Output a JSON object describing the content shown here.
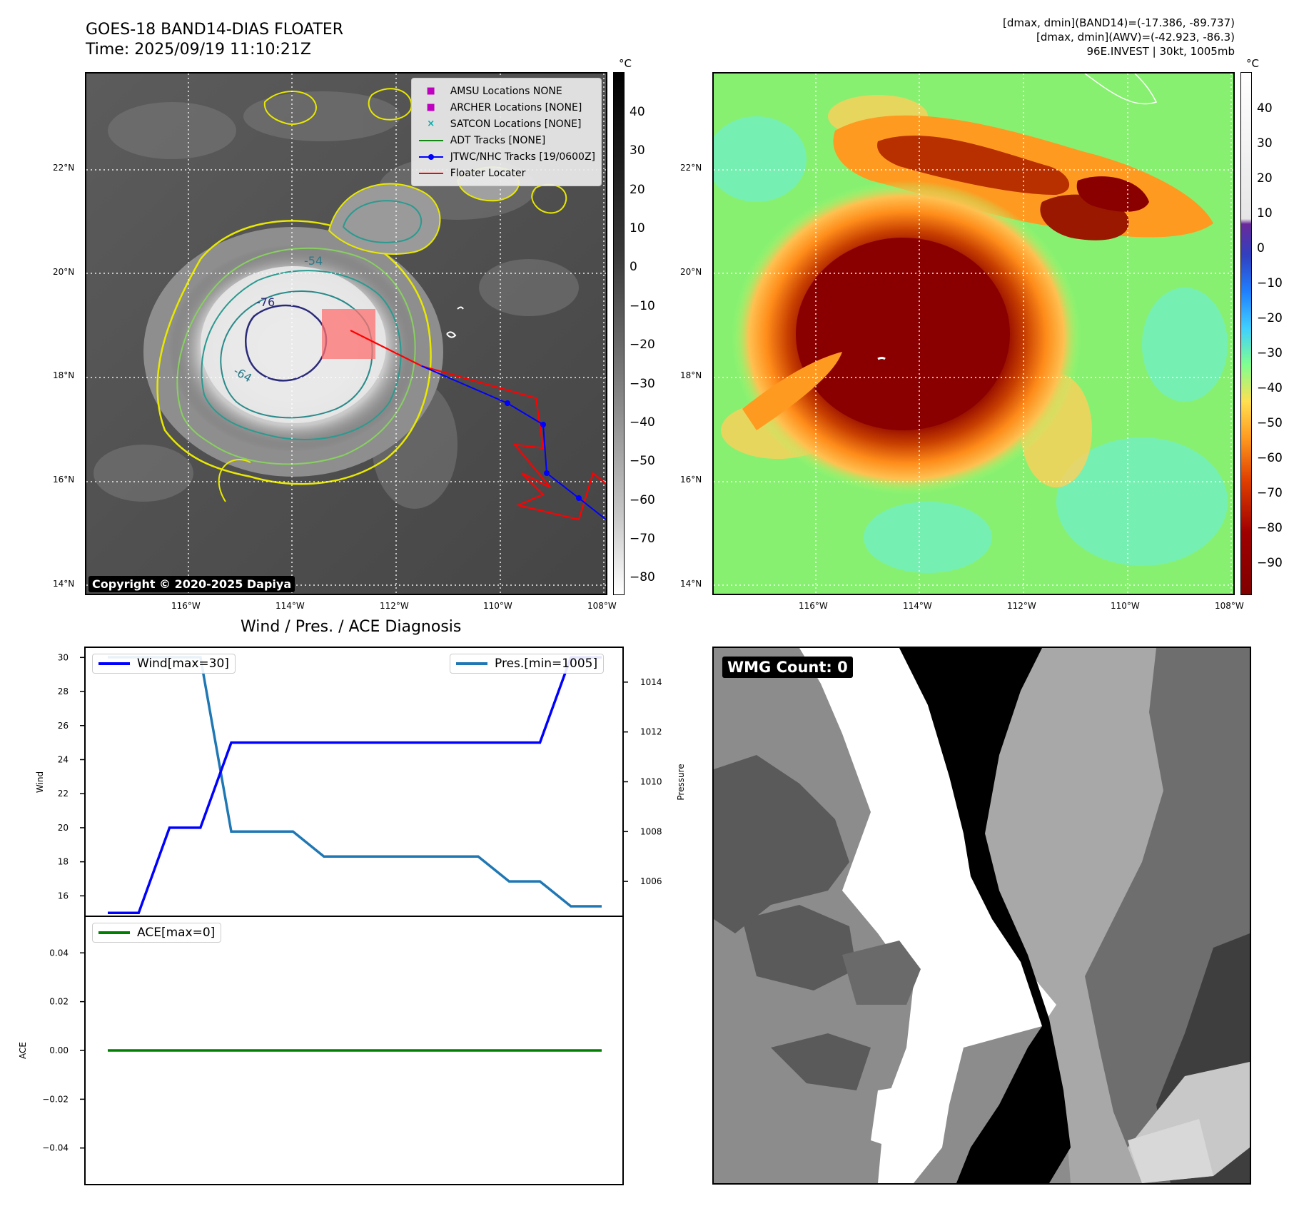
{
  "header": {
    "title_line1": "GOES-18 BAND14-DIAS FLOATER",
    "title_line2": "Time: 2025/09/19 11:10:21Z",
    "right_line1": "[dmax, dmin](BAND14)=(-17.386, -89.737)",
    "right_line2": "[dmax, dmin](AWV)=(-42.923, -86.3)",
    "right_line3": "96E.INVEST | 30kt, 1005mb"
  },
  "ir_panel": {
    "copyright": "Copyright © 2020-2025 Dapiya",
    "lat_labels": [
      "22°N",
      "20°N",
      "18°N",
      "16°N",
      "14°N"
    ],
    "lon_labels": [
      "116°W",
      "114°W",
      "112°W",
      "110°W",
      "108°W"
    ],
    "contour_labels": [
      "-54",
      "-76",
      "-64"
    ],
    "legend": [
      {
        "marker": "■",
        "color": "#c000c0",
        "label": "AMSU Locations NONE"
      },
      {
        "marker": "■",
        "color": "#c000c0",
        "label": "ARCHER Locations [NONE]"
      },
      {
        "marker": "×",
        "color": "#00b0b0",
        "label": "SATCON Locations [NONE]"
      },
      {
        "marker": "line",
        "color": "#118811",
        "label": "ADT Tracks [NONE]"
      },
      {
        "marker": "dotline",
        "color": "#0000ff",
        "label": "JTWC/NHC Tracks [19/0600Z]"
      },
      {
        "marker": "line",
        "color": "#ff0000",
        "label": "Floater Locater"
      }
    ],
    "colorbar_unit": "°C",
    "colorbar_ticks": [
      "40",
      "30",
      "20",
      "10",
      "0",
      "−10",
      "−20",
      "−30",
      "−40",
      "−50",
      "−60",
      "−70",
      "−80"
    ]
  },
  "wv_panel": {
    "lat_labels": [
      "22°N",
      "20°N",
      "18°N",
      "16°N",
      "14°N"
    ],
    "lon_labels": [
      "116°W",
      "114°W",
      "112°W",
      "110°W",
      "108°W"
    ],
    "colorbar_unit": "°C",
    "colorbar_ticks": [
      "40",
      "30",
      "20",
      "10",
      "0",
      "−10",
      "−20",
      "−30",
      "−40",
      "−50",
      "−60",
      "−70",
      "−80",
      "−90"
    ]
  },
  "wmg_panel": {
    "badge": "WMG Count: 0"
  },
  "chart_data": [
    {
      "type": "line",
      "title": "Wind / Pres. / ACE Diagnosis",
      "ylabel": "Wind",
      "y2label": "Pressure",
      "ylim": [
        14.8,
        30.6
      ],
      "y2lim": [
        1004.6,
        1015.4
      ],
      "yticks": [
        16,
        18,
        20,
        22,
        24,
        26,
        28,
        30
      ],
      "y2ticks": [
        1006,
        1008,
        1010,
        1012,
        1014
      ],
      "series": [
        {
          "name": "Wind[max=30]",
          "color": "#0000ff",
          "values": [
            15,
            15,
            20,
            20,
            25,
            25,
            25,
            25,
            25,
            25,
            25,
            25,
            25,
            25,
            25,
            30,
            30
          ]
        },
        {
          "name": "Pres.[min=1005]",
          "color": "#1f77b4",
          "axis": "right",
          "values": [
            1015,
            1015,
            1015,
            1015,
            1008,
            1008,
            1008,
            1007,
            1007,
            1007,
            1007,
            1007,
            1007,
            1006,
            1006,
            1005,
            1005
          ]
        }
      ]
    },
    {
      "type": "line",
      "ylabel": "ACE",
      "ylim": [
        -0.055,
        0.055
      ],
      "yticks": [
        0.04,
        0.02,
        0.0,
        -0.02,
        -0.04
      ],
      "ytick_labels": [
        "0.04",
        "0.02",
        "0.00",
        "−0.02",
        "−0.04"
      ],
      "series": [
        {
          "name": "ACE[max=0]",
          "color": "#008000",
          "values": [
            0,
            0,
            0,
            0,
            0,
            0,
            0,
            0,
            0,
            0,
            0,
            0,
            0,
            0,
            0,
            0,
            0
          ]
        }
      ]
    }
  ]
}
